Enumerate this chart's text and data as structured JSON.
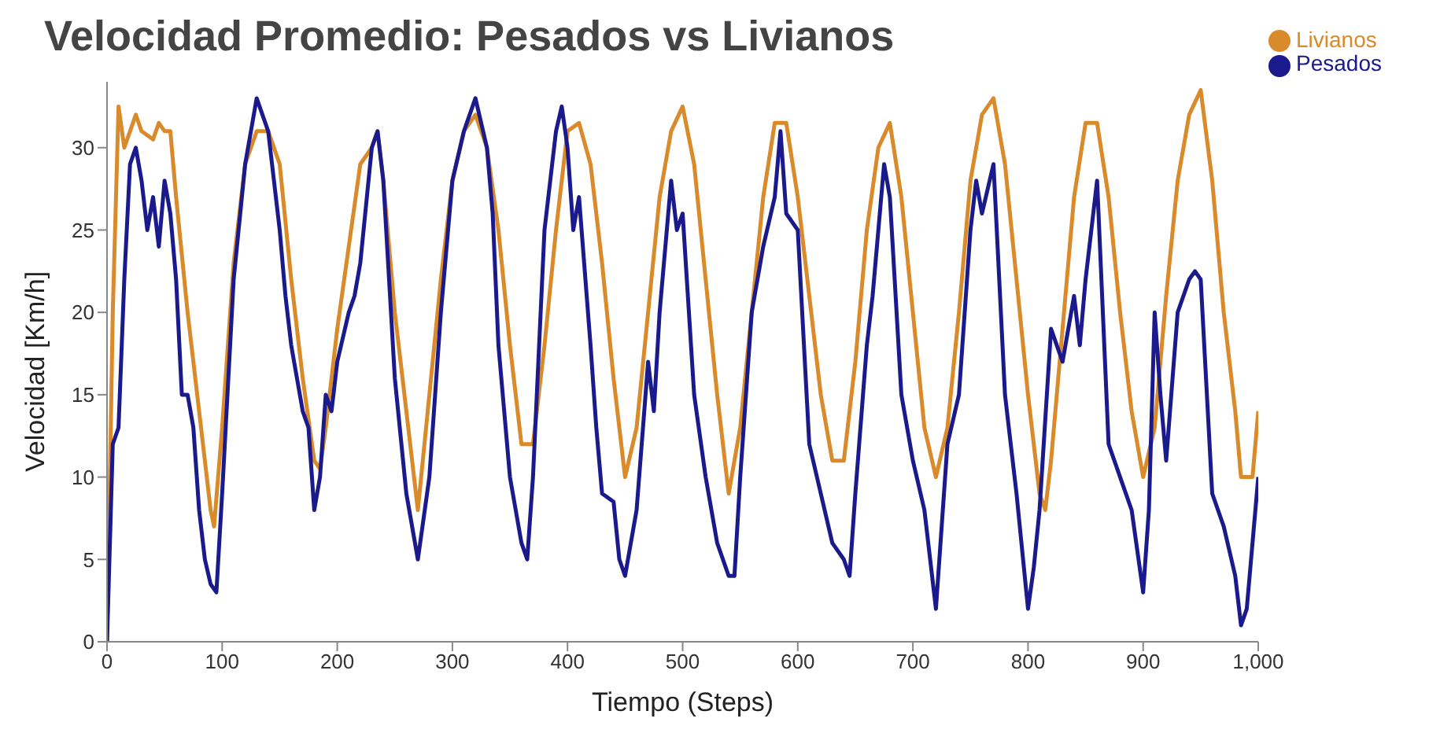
{
  "chart_data": {
    "type": "line",
    "title": "Velocidad Promedio: Pesados vs Livianos",
    "xlabel": "Tiempo (Steps)",
    "ylabel": "Velocidad [Km/h]",
    "xlim": [
      0,
      1000
    ],
    "xticks": [
      0,
      100,
      200,
      300,
      400,
      500,
      600,
      700,
      800,
      900,
      {
        "value": 1000,
        "label": "1,000"
      }
    ],
    "ylim": [
      0,
      34
    ],
    "yticks": [
      0,
      5,
      10,
      15,
      20,
      25,
      30
    ],
    "grid": false,
    "legend": "top right",
    "marker": "none",
    "line_style": "solid",
    "series": [
      {
        "name": "Livianos",
        "color": "#d98a2b",
        "x": [
          0,
          5,
          10,
          15,
          20,
          25,
          30,
          40,
          45,
          50,
          55,
          60,
          70,
          80,
          90,
          93,
          100,
          110,
          120,
          130,
          140,
          150,
          160,
          170,
          180,
          185,
          190,
          200,
          210,
          220,
          230,
          235,
          240,
          250,
          260,
          270,
          280,
          290,
          300,
          310,
          320,
          330,
          340,
          350,
          360,
          370,
          380,
          390,
          400,
          410,
          420,
          430,
          440,
          450,
          460,
          470,
          480,
          490,
          500,
          510,
          520,
          530,
          540,
          550,
          560,
          570,
          580,
          590,
          600,
          610,
          620,
          630,
          640,
          650,
          660,
          670,
          680,
          690,
          700,
          710,
          720,
          730,
          740,
          750,
          760,
          770,
          780,
          790,
          800,
          810,
          815,
          820,
          830,
          840,
          850,
          860,
          870,
          880,
          890,
          900,
          910,
          920,
          930,
          940,
          950,
          960,
          970,
          980,
          985,
          995,
          1000
        ],
        "values": [
          0,
          20,
          32.5,
          30,
          31,
          32,
          31,
          30.5,
          31.5,
          31,
          31,
          27,
          20,
          14,
          8,
          7,
          13,
          23,
          29,
          31,
          31,
          29,
          22,
          16,
          11,
          10.5,
          13,
          19,
          24,
          29,
          30,
          31,
          28,
          20,
          14,
          8,
          15,
          22,
          28,
          31,
          32,
          30,
          25,
          18,
          12,
          12,
          18,
          25,
          31,
          31.5,
          29,
          23,
          16,
          10,
          13,
          20,
          27,
          31,
          32.5,
          29,
          22,
          15,
          9,
          13,
          20,
          27,
          31.5,
          31.5,
          27,
          21,
          15,
          11,
          11,
          17,
          25,
          30,
          31.5,
          27,
          20,
          13,
          10,
          13,
          20,
          28,
          32,
          33,
          29,
          22,
          15,
          9,
          8,
          11,
          19,
          27,
          31.5,
          31.5,
          27,
          20,
          14,
          10,
          13,
          21,
          28,
          32,
          33.5,
          28,
          20,
          14,
          10,
          10,
          14
        ]
      },
      {
        "name": "Pesados",
        "color": "#1a1a8c",
        "x": [
          0,
          5,
          10,
          15,
          20,
          25,
          30,
          35,
          40,
          45,
          50,
          55,
          60,
          65,
          70,
          75,
          80,
          85,
          90,
          95,
          100,
          110,
          120,
          125,
          130,
          140,
          150,
          155,
          160,
          170,
          175,
          180,
          185,
          190,
          195,
          200,
          210,
          215,
          220,
          230,
          235,
          240,
          250,
          260,
          270,
          280,
          290,
          300,
          310,
          320,
          330,
          335,
          340,
          350,
          360,
          365,
          370,
          380,
          390,
          395,
          400,
          405,
          410,
          420,
          425,
          430,
          440,
          445,
          450,
          460,
          470,
          475,
          480,
          490,
          495,
          500,
          510,
          520,
          530,
          540,
          545,
          550,
          560,
          570,
          580,
          585,
          590,
          600,
          610,
          620,
          630,
          640,
          645,
          650,
          660,
          665,
          670,
          675,
          680,
          690,
          700,
          710,
          720,
          730,
          740,
          750,
          755,
          760,
          770,
          780,
          790,
          800,
          805,
          810,
          820,
          830,
          840,
          845,
          850,
          860,
          870,
          880,
          890,
          900,
          905,
          910,
          915,
          920,
          930,
          940,
          945,
          950,
          960,
          970,
          980,
          985,
          990,
          1000
        ],
        "values": [
          0,
          12,
          13,
          22,
          29,
          30,
          28,
          25,
          27,
          24,
          28,
          26,
          22,
          15,
          15,
          13,
          8,
          5,
          3.5,
          3,
          9,
          22,
          29,
          31,
          33,
          31,
          25,
          21,
          18,
          14,
          13,
          8,
          10,
          15,
          14,
          17,
          20,
          21,
          23,
          30,
          31,
          28,
          16,
          9,
          5,
          10,
          20,
          28,
          31,
          33,
          30,
          26,
          18,
          10,
          6,
          5,
          10,
          25,
          31,
          32.5,
          30,
          25,
          27,
          18,
          13,
          9,
          8.5,
          5,
          4,
          8,
          17,
          14,
          20,
          28,
          25,
          26,
          15,
          10,
          6,
          4,
          4,
          10,
          20,
          24,
          27,
          31,
          26,
          25,
          12,
          9,
          6,
          5,
          4,
          9,
          18,
          21,
          25,
          29,
          27,
          15,
          11,
          8,
          2,
          12,
          15,
          25,
          28,
          26,
          29,
          15,
          9,
          2,
          4.5,
          8,
          19,
          17,
          21,
          18,
          22,
          28,
          12,
          10,
          8,
          3,
          8,
          20,
          15,
          11,
          20,
          22,
          22.5,
          22,
          9,
          7,
          4,
          1,
          2,
          10
        ]
      }
    ]
  }
}
